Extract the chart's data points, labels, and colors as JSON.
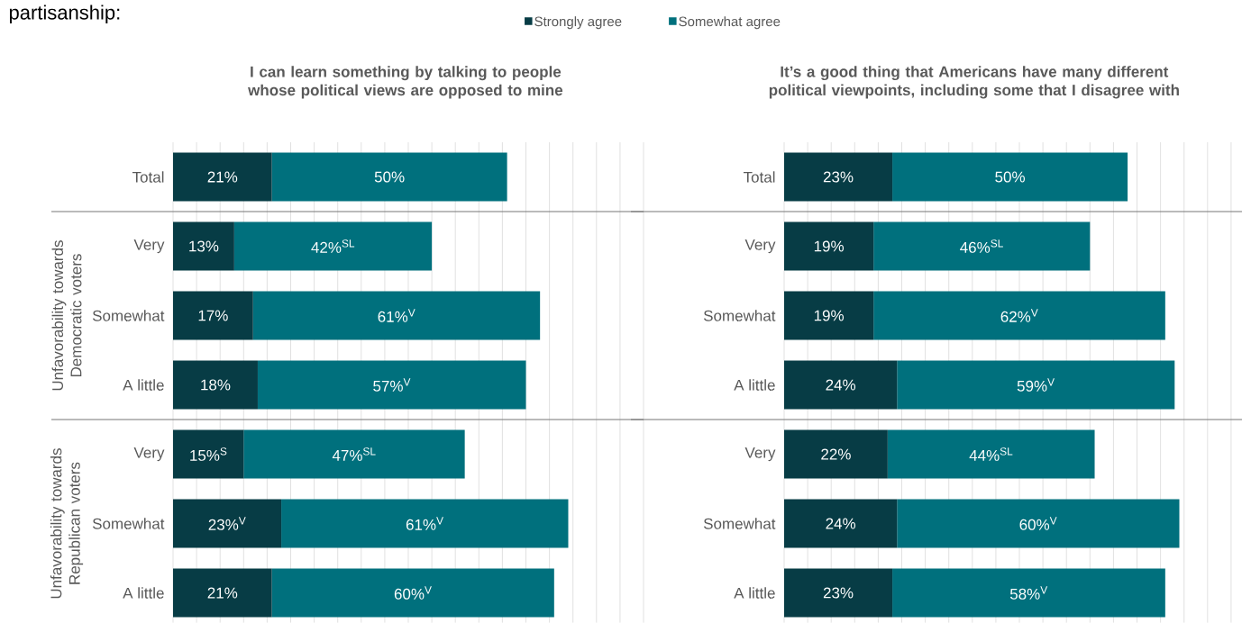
{
  "chart_data": [
    {
      "type": "bar",
      "orientation": "horizontal",
      "stacked": true,
      "title": "I can learn something by talking to people whose political views are opposed to mine",
      "categories": [
        "Total",
        "Very",
        "Somewhat",
        "A little",
        "Very",
        "Somewhat",
        "A little"
      ],
      "series": [
        {
          "name": "Strongly agree",
          "color": "#073c45",
          "values": [
            21,
            13,
            17,
            18,
            15,
            23,
            21
          ],
          "value_labels": [
            "21%",
            "13%",
            "17%",
            "18%",
            "15%$^{S}$",
            "23%$^{V}$",
            "21%"
          ]
        },
        {
          "name": "Somewhat agree",
          "color": "#00707d",
          "values": [
            50,
            42,
            61,
            57,
            47,
            61,
            60
          ],
          "value_labels": [
            "50%",
            "42%$^{SL}$",
            "61%$^{V}$",
            "57%$^{V}$",
            "47%$^{SL}$",
            "61%$^{V}$",
            "60%$^{V}$"
          ]
        }
      ],
      "grid": "x",
      "tick_labels": "y",
      "legend": "top",
      "annotations": [
        "partisanship:",
        "Unfavorability towards Democratic voters",
        "Unfavorability towards Republican voters"
      ]
    },
    {
      "type": "bar",
      "orientation": "horizontal",
      "stacked": true,
      "title": "It’s a good thing that Americans have many different political viewpoints, including some that I disagree with",
      "categories": [
        "Total",
        "Very",
        "Somewhat",
        "A little",
        "Very",
        "Somewhat",
        "A little"
      ],
      "series": [
        {
          "color": "#073c45",
          "values": [
            23,
            19,
            19,
            24,
            22,
            24,
            23
          ],
          "value_labels": [
            "23%",
            "19%",
            "19%",
            "24%",
            "22%",
            "24%",
            "23%"
          ]
        },
        {
          "color": "#00707d",
          "values": [
            50,
            46,
            62,
            59,
            44,
            60,
            58
          ],
          "value_labels": [
            "50%",
            "46%$^{SL}$",
            "62%$^{V}$",
            "59%$^{V}$",
            "44%$^{SL}$",
            "60%$^{V}$",
            "58%$^{V}$"
          ]
        }
      ],
      "grid": "x",
      "tick_labels": "y"
    }
  ]
}
